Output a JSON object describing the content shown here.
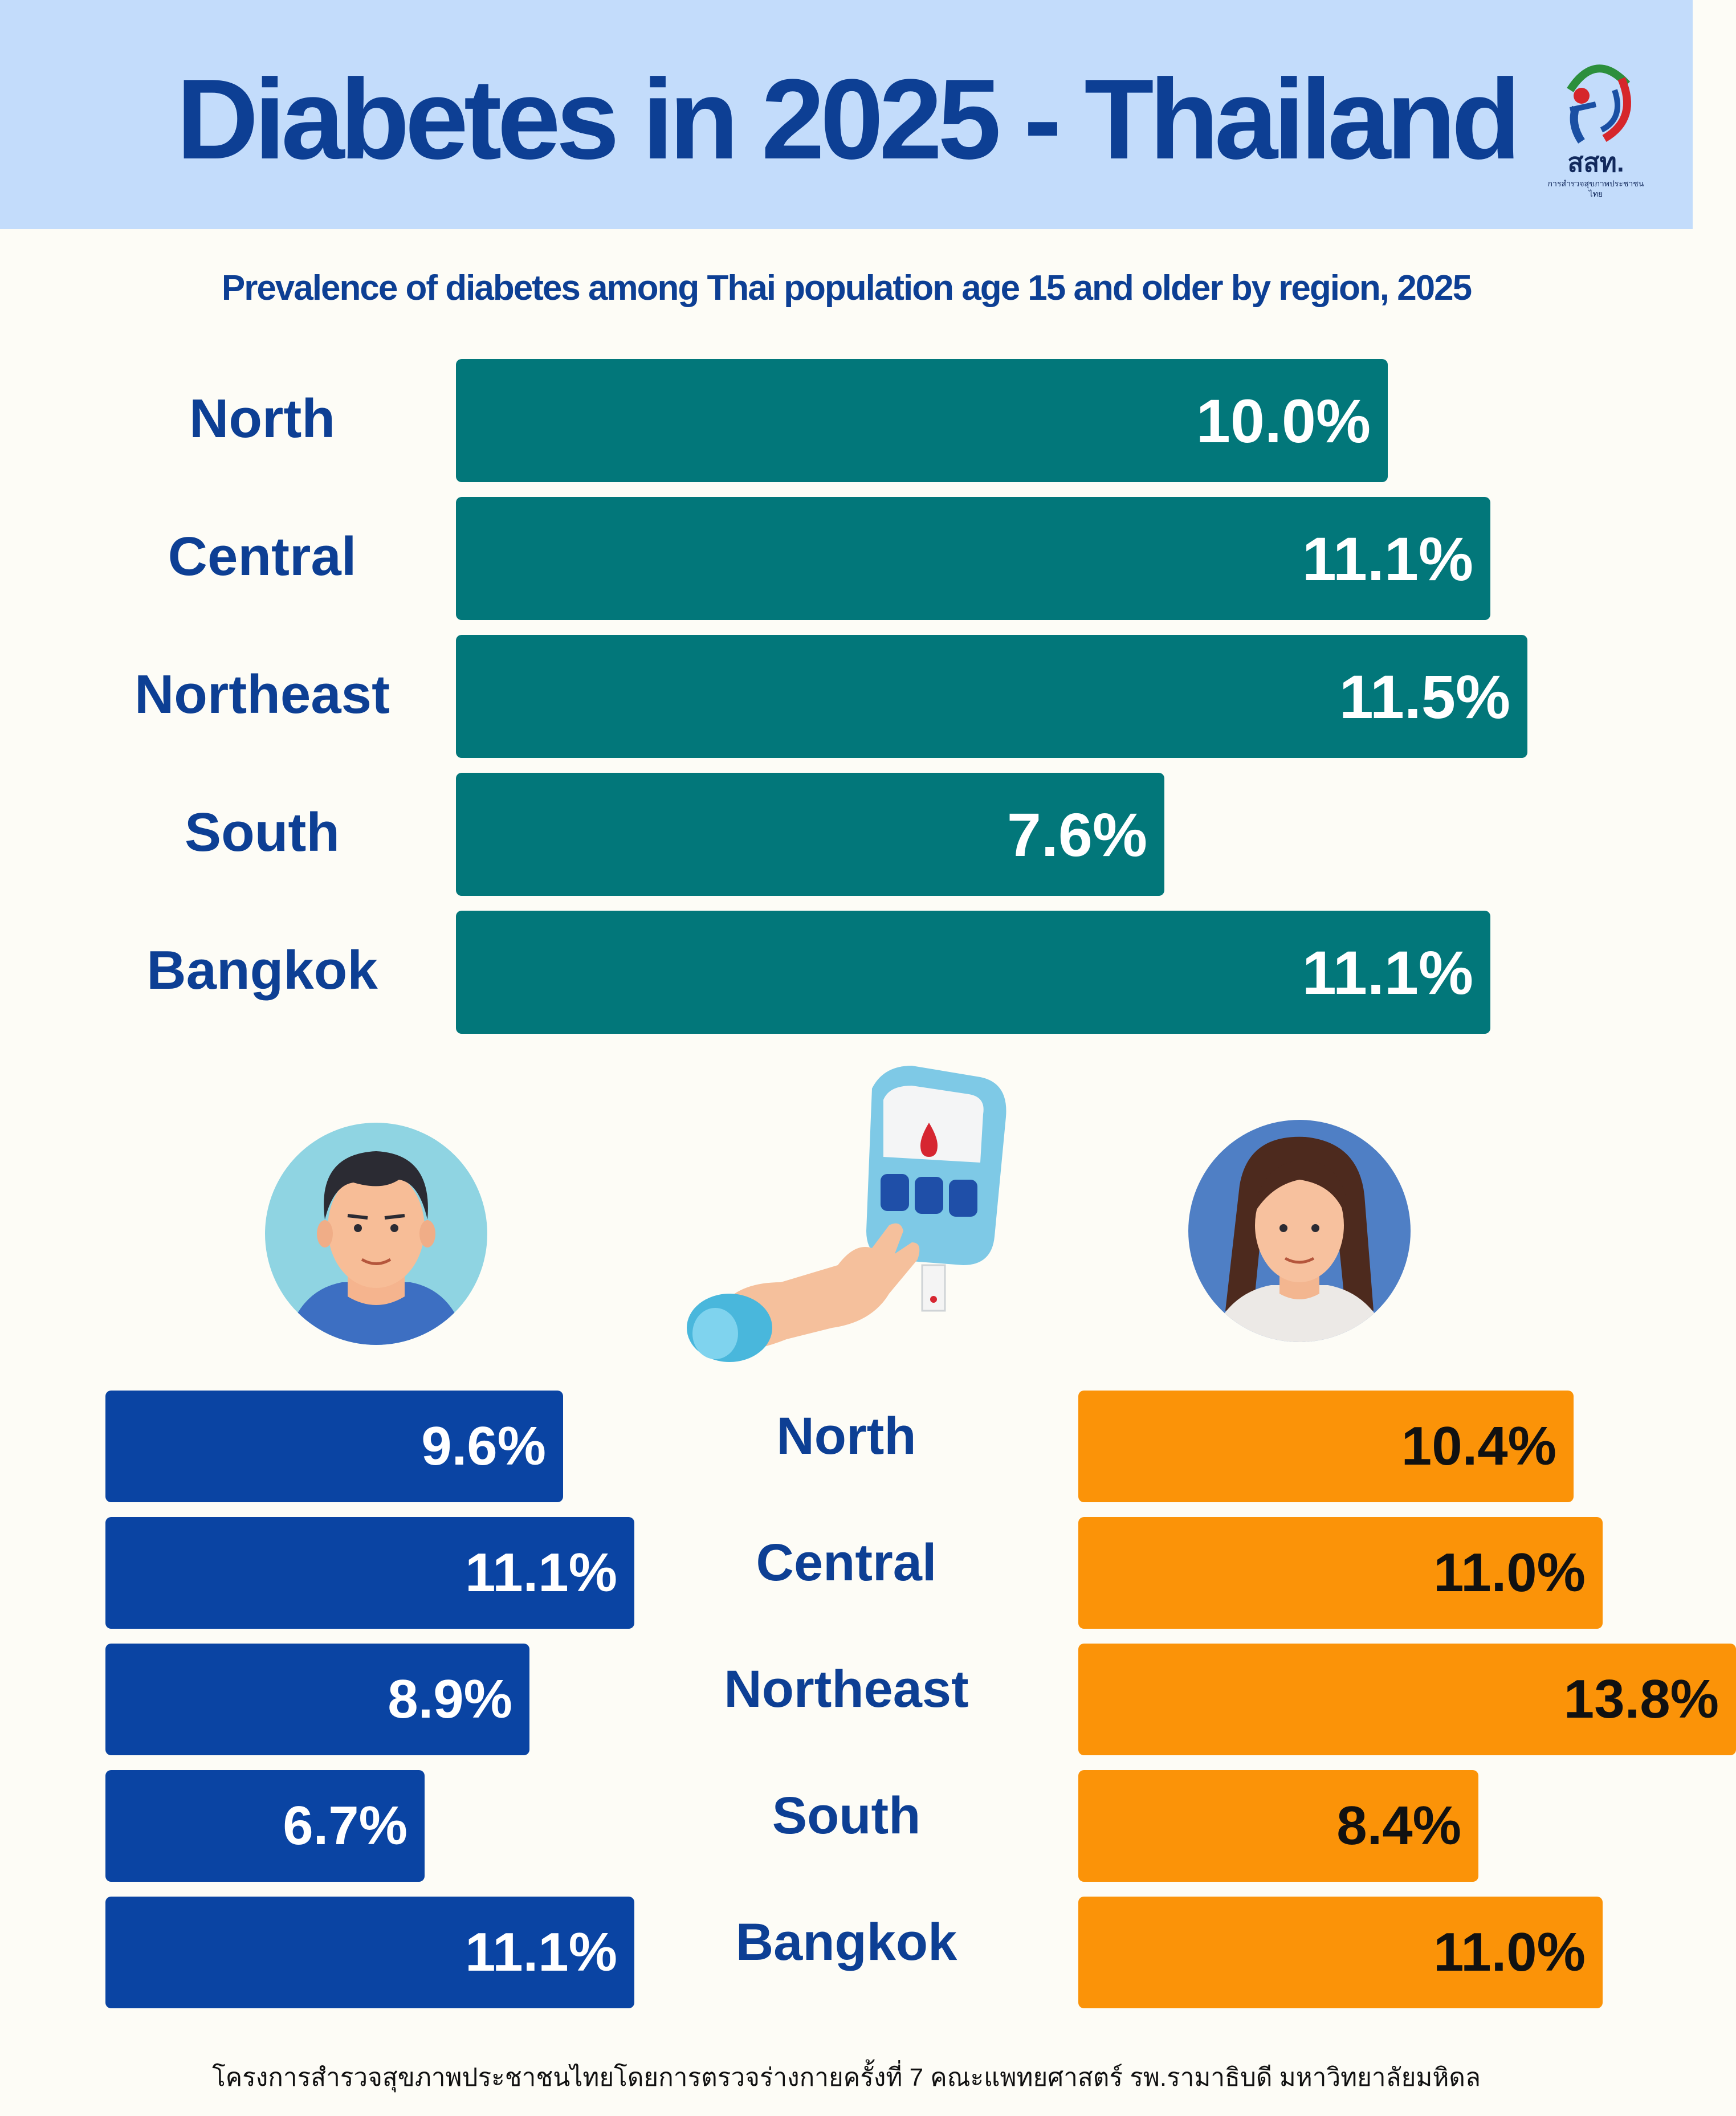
{
  "header": {
    "title": "Diabetes in 2025 - Thailand",
    "logo_text": "สสท.",
    "logo_subtext": "การสำรวจสุขภาพประชาชนไทย"
  },
  "subtitle": "Prevalence of  diabetes among Thai population age 15 and older  by region, 2025",
  "footer": "โครงการสำรวจสุขภาพประชาชนไทยโดยการตรวจร่างกายครั้งที่ 7 คณะแพทยศาสตร์ รพ.รามาธิบดี มหาวิทยาลัยมหิดล",
  "colors": {
    "header_bg": "#c3dcfb",
    "title": "#0d3f94",
    "total_bar": "#02777a",
    "male_bar": "#0a44a3",
    "female_bar": "#fb9308"
  },
  "chart_data": [
    {
      "type": "bar",
      "orientation": "horizontal",
      "title": "Prevalence of  diabetes among Thai population age 15 and older  by region, 2025",
      "categories": [
        "North",
        "Central",
        "Northeast",
        "South",
        "Bangkok"
      ],
      "values": [
        10.0,
        11.1,
        11.5,
        7.6,
        11.1
      ],
      "labels": [
        "10.0%",
        "11.1%",
        "11.5%",
        "7.6%",
        "11.1%"
      ],
      "unit": "%"
    },
    {
      "type": "bar",
      "orientation": "horizontal",
      "series_name": "Male",
      "categories": [
        "North",
        "Central",
        "Northeast",
        "South",
        "Bangkok"
      ],
      "values": [
        9.6,
        11.1,
        8.9,
        6.7,
        11.1
      ],
      "labels": [
        "9.6%",
        "11.1%",
        "8.9%",
        "6.7%",
        "11.1%"
      ],
      "unit": "%"
    },
    {
      "type": "bar",
      "orientation": "horizontal",
      "series_name": "Female",
      "categories": [
        "North",
        "Central",
        "Northeast",
        "South",
        "Bangkok"
      ],
      "values": [
        10.4,
        11.0,
        13.8,
        8.4,
        11.0
      ],
      "labels": [
        "10.4%",
        "11.0%",
        "13.8%",
        "8.4%",
        "11.0%"
      ],
      "unit": "%"
    }
  ]
}
